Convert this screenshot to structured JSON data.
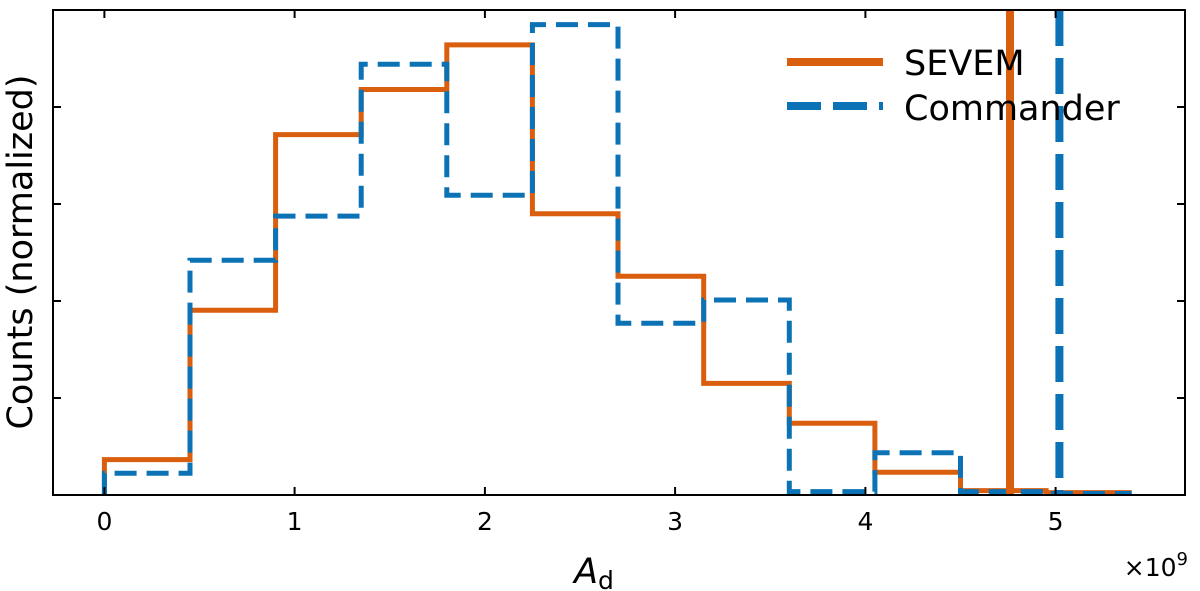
{
  "chart_data": {
    "type": "histogram",
    "xlabel": "A_d",
    "xlabel_main": "A",
    "xlabel_sub": "d",
    "ylabel": "Counts (normalized)",
    "x_multiplier_label": "×10",
    "x_multiplier_exp": "9",
    "xlim": [
      -0.27,
      5.68
    ],
    "ylim": [
      0,
      0.1
    ],
    "x_ticks": [
      0,
      1,
      2,
      3,
      4,
      5
    ],
    "x_tick_labels": [
      "0",
      "1",
      "2",
      "3",
      "4",
      "5"
    ],
    "y_ticks": [
      0.02,
      0.04,
      0.06,
      0.08
    ],
    "y_tick_labels_shown": false,
    "tick_direction": "in",
    "ticks_on_all_sides": true,
    "grid": false,
    "legend_position": "top-right",
    "bin_edges": [
      0.0,
      0.45,
      0.9,
      1.35,
      1.8,
      2.25,
      2.7,
      3.15,
      3.6,
      4.05,
      4.5,
      4.95,
      5.4
    ],
    "series": [
      {
        "name": "SEVEM",
        "color": "#d95f0e",
        "linestyle": "solid",
        "counts": [
          0.0073,
          0.0381,
          0.0743,
          0.0836,
          0.0928,
          0.058,
          0.0451,
          0.023,
          0.0148,
          0.0047,
          0.0009,
          0.0005
        ],
        "marker_x": 4.76
      },
      {
        "name": "Commander",
        "color": "#0b72b5",
        "linestyle": "dashed",
        "counts": [
          0.0045,
          0.0484,
          0.0575,
          0.0888,
          0.0618,
          0.097,
          0.0354,
          0.0402,
          0.0007,
          0.0087,
          0.0007,
          0.0003
        ],
        "marker_x": 5.02
      }
    ]
  }
}
